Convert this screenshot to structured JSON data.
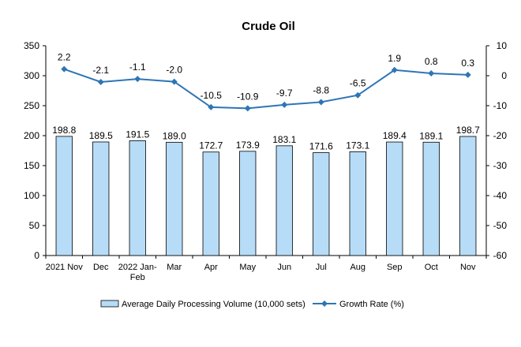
{
  "chart_data": {
    "type": "bar",
    "title": "Crude Oil",
    "categories": [
      "2021 Nov",
      "Dec",
      "2022 Jan-Feb",
      "Mar",
      "Apr",
      "May",
      "Jun",
      "Jul",
      "Aug",
      "Sep",
      "Oct",
      "Nov"
    ],
    "series": [
      {
        "name": "Average Daily Processing Volume (10,000 sets)",
        "type": "bar",
        "axis": "left",
        "color": "#b7dcf7",
        "values": [
          198.8,
          189.5,
          191.5,
          189.0,
          172.7,
          173.9,
          183.1,
          171.6,
          173.1,
          189.4,
          189.1,
          198.7
        ],
        "labels": [
          "198.8",
          "189.5",
          "191.5",
          "189.0",
          "172.7",
          "173.9",
          "183.1",
          "171.6",
          "173.1",
          "189.4",
          "189.1",
          "198.7"
        ]
      },
      {
        "name": "Growth Rate (%)",
        "type": "line",
        "axis": "right",
        "color": "#2e75b6",
        "values": [
          2.2,
          -2.1,
          -1.1,
          -2.0,
          -10.5,
          -10.9,
          -9.7,
          -8.8,
          -6.5,
          1.9,
          0.8,
          0.3
        ],
        "labels": [
          "2.2",
          "-2.1",
          "-1.1",
          "-2.0",
          "-10.5",
          "-10.9",
          "-9.7",
          "-8.8",
          "-6.5",
          "1.9",
          "0.8",
          "0.3"
        ]
      }
    ],
    "y_left": {
      "min": 0,
      "max": 350,
      "ticks": [
        "0",
        "50",
        "100",
        "150",
        "200",
        "250",
        "300",
        "350"
      ]
    },
    "y_right": {
      "min": -60,
      "max": 10,
      "ticks": [
        "-60",
        "-50",
        "-40",
        "-30",
        "-20",
        "-10",
        "0",
        "10"
      ]
    },
    "grid": false,
    "legend_position": "bottom"
  }
}
